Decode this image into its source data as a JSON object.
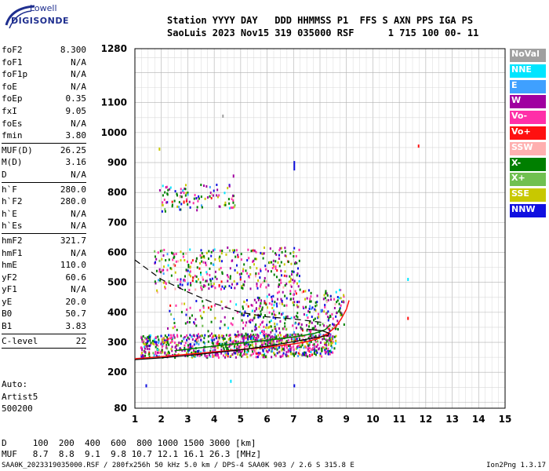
{
  "logo": {
    "top": "Lowell",
    "main": "DIGISONDE"
  },
  "header": {
    "line1": "Station YYYY DAY   DDD HHMMSS P1  FFS S AXN PPS IGA PS",
    "line2": "SaoLuis 2023 Nov15 319 035000 RSF      1 715 100 00- 11"
  },
  "params": {
    "group1": [
      {
        "k": "foF2",
        "v": "8.300"
      },
      {
        "k": "foF1",
        "v": "N/A"
      },
      {
        "k": "foF1p",
        "v": "N/A"
      },
      {
        "k": "foE",
        "v": "N/A"
      },
      {
        "k": "foEp",
        "v": "0.35"
      },
      {
        "k": "fxI",
        "v": "9.05"
      },
      {
        "k": "foEs",
        "v": "N/A"
      },
      {
        "k": "fmin",
        "v": "3.80"
      }
    ],
    "group2": [
      {
        "k": "MUF(D)",
        "v": "26.25"
      },
      {
        "k": "M(D)",
        "v": "3.16"
      },
      {
        "k": "D",
        "v": "N/A"
      }
    ],
    "group3": [
      {
        "k": "h`F",
        "v": "280.0"
      },
      {
        "k": "h`F2",
        "v": "280.0"
      },
      {
        "k": "h`E",
        "v": "N/A"
      },
      {
        "k": "h`Es",
        "v": "N/A"
      }
    ],
    "group4": [
      {
        "k": "hmF2",
        "v": "321.7"
      },
      {
        "k": "hmF1",
        "v": "N/A"
      },
      {
        "k": "hmE",
        "v": "110.0"
      },
      {
        "k": "yF2",
        "v": "60.6"
      },
      {
        "k": "yF1",
        "v": "N/A"
      },
      {
        "k": "yE",
        "v": "20.0"
      },
      {
        "k": "B0",
        "v": "50.7"
      },
      {
        "k": "B1",
        "v": "3.83"
      }
    ],
    "clevel": {
      "k": "C-level",
      "v": "22"
    }
  },
  "auto": {
    "line1": "Auto:",
    "line2": "Artist5",
    "line3": "500200"
  },
  "dmuf": {
    "d_line": "D     100  200  400  600  800 1000 1500 3000 [km]",
    "muf_line": "MUF   8.7  8.8  9.1  9.8 10.7 12.1 16.1 26.3 [MHz]"
  },
  "footer": {
    "left": "SAA0K_2023319035000.RSF / 280fx256h 50 kHz 5.0 km / DPS-4 SAA0K 903 / 2.6 S 315.8 E",
    "right": "Ion2Png 1.3.17"
  },
  "legend": [
    {
      "label": "NoVal",
      "color": "#a0a0a0"
    },
    {
      "label": "NNE",
      "color": "#00e5ff"
    },
    {
      "label": "E",
      "color": "#3fa0ff"
    },
    {
      "label": "W",
      "color": "#a000a0"
    },
    {
      "label": "Vo-",
      "color": "#ff2fa8"
    },
    {
      "label": "Vo+",
      "color": "#ff1010"
    },
    {
      "label": "SSW",
      "color": "#ffb0b0"
    },
    {
      "label": "X-",
      "color": "#007f00"
    },
    {
      "label": "X+",
      "color": "#70c050"
    },
    {
      "label": "SSE",
      "color": "#c8c800"
    },
    {
      "label": "NNW",
      "color": "#1010e0"
    }
  ],
  "chart_data": {
    "type": "scatter",
    "xlim": [
      1,
      15
    ],
    "ylim": [
      80,
      1280
    ],
    "x_ticks": [
      "1",
      "2",
      "3",
      "4",
      "5",
      "6",
      "7",
      "8",
      "9",
      "10",
      "11",
      "12",
      "13",
      "14",
      "15"
    ],
    "y_ticks": [
      {
        "v": 80,
        "label": "80"
      },
      {
        "v": 200,
        "label": "200"
      },
      {
        "v": 300,
        "label": "300"
      },
      {
        "v": 400,
        "label": "400"
      },
      {
        "v": 500,
        "label": "500"
      },
      {
        "v": 600,
        "label": "600"
      },
      {
        "v": 700,
        "label": "700"
      },
      {
        "v": 800,
        "label": "800"
      },
      {
        "v": 900,
        "label": "900"
      },
      {
        "v": 1000,
        "label": "1000"
      },
      {
        "v": 1100,
        "label": "1100"
      },
      {
        "v": 1280,
        "label": "1280"
      }
    ],
    "grid": true,
    "o_trace": [
      [
        1.0,
        245
      ],
      [
        2,
        252
      ],
      [
        3,
        260
      ],
      [
        4,
        268
      ],
      [
        5,
        276
      ],
      [
        6,
        284
      ],
      [
        6.8,
        292
      ],
      [
        7.4,
        300
      ],
      [
        7.9,
        312
      ],
      [
        8.3,
        330
      ],
      [
        8.6,
        352
      ],
      [
        8.8,
        378
      ],
      [
        9.0,
        410
      ],
      [
        9.1,
        440
      ]
    ],
    "x_trace": [
      [
        2.5,
        272
      ],
      [
        3.5,
        282
      ],
      [
        4.5,
        292
      ],
      [
        5.5,
        302
      ],
      [
        6.5,
        312
      ],
      [
        7.2,
        320
      ],
      [
        7.8,
        330
      ],
      [
        8.2,
        342
      ],
      [
        8.4,
        360
      ]
    ],
    "profile": [
      [
        1.0,
        242
      ],
      [
        2,
        248
      ],
      [
        3,
        256
      ],
      [
        4,
        265
      ],
      [
        5,
        275
      ],
      [
        6,
        287
      ],
      [
        7,
        302
      ],
      [
        7.6,
        312
      ],
      [
        8.0,
        318
      ],
      [
        8.3,
        323
      ],
      [
        8.35,
        330
      ],
      [
        8.1,
        338
      ],
      [
        7.5,
        344
      ]
    ],
    "dashed": [
      [
        1.0,
        575
      ],
      [
        2,
        510
      ],
      [
        3,
        468
      ],
      [
        4,
        430
      ],
      [
        5,
        400
      ],
      [
        6,
        385
      ],
      [
        7,
        378
      ],
      [
        8.2,
        365
      ]
    ],
    "clusters": [
      {
        "x0": 1.2,
        "x1": 8.6,
        "y0": 250,
        "y1": 330,
        "n": 900,
        "tilt": 0.08
      },
      {
        "x0": 5.0,
        "x1": 8.9,
        "y0": 290,
        "y1": 480,
        "n": 360,
        "tilt": 0.3
      },
      {
        "x0": 1.7,
        "x1": 7.2,
        "y0": 470,
        "y1": 620,
        "n": 360,
        "tilt": 0.12
      },
      {
        "x0": 1.9,
        "x1": 4.8,
        "y0": 740,
        "y1": 830,
        "n": 110,
        "tilt": 0.1
      },
      {
        "x0": 2.2,
        "x1": 6.0,
        "y0": 320,
        "y1": 450,
        "n": 90,
        "tilt": 0.2
      }
    ],
    "outliers": [
      [
        7.0,
        905,
        "#1010e0"
      ],
      [
        7.0,
        160,
        "#1010e0"
      ],
      [
        4.6,
        175,
        "#00e5ff"
      ],
      [
        11.7,
        960,
        "#ff1010"
      ],
      [
        11.3,
        385,
        "#ff1010"
      ],
      [
        11.3,
        515,
        "#00e5ff"
      ],
      [
        1.4,
        160,
        "#1010e0"
      ],
      [
        1.9,
        950,
        "#c8c800"
      ],
      [
        4.3,
        1060,
        "#a0a0a0"
      ],
      [
        4.7,
        860,
        "#a000a0"
      ]
    ]
  }
}
